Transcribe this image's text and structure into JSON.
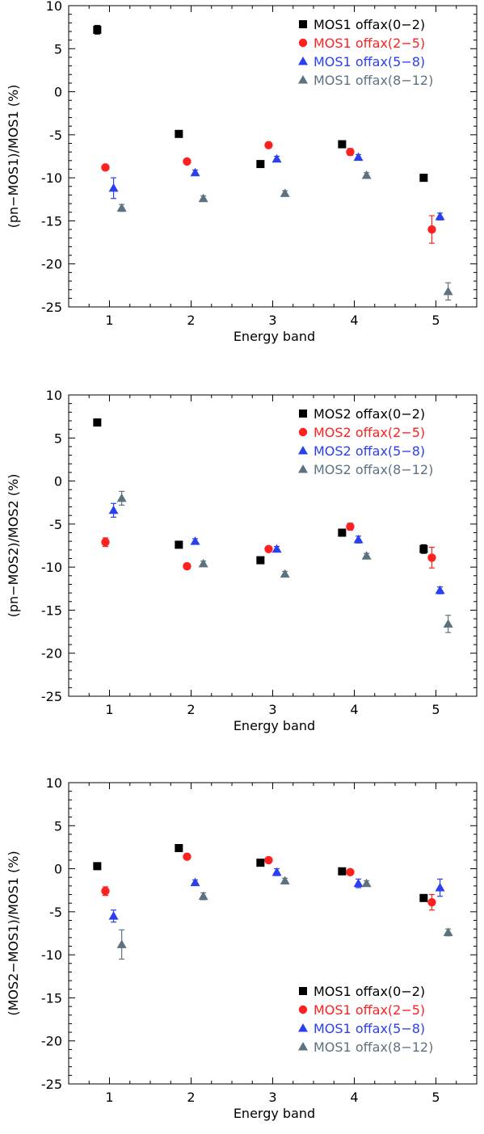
{
  "chart_data": [
    {
      "type": "scatter",
      "xlabel": "Energy band",
      "ylabel": "(pn−MOS1)/MOS1 (%)",
      "xlim": [
        0.5,
        5.5
      ],
      "ylim": [
        -25,
        10
      ],
      "xticks": [
        1,
        2,
        3,
        4,
        5
      ],
      "yticks": [
        10,
        5,
        0,
        -5,
        -10,
        -15,
        -20,
        -25
      ],
      "legend_position": "top-right",
      "series": [
        {
          "name": "MOS1 offax(0−2)",
          "color": "#000000",
          "marker": "square",
          "x": [
            0.85,
            1.85,
            2.85,
            3.85,
            4.85
          ],
          "y": [
            7.2,
            -4.9,
            -8.4,
            -6.1,
            -10.0
          ],
          "err": [
            0.5,
            0.3,
            0.3,
            0.3,
            0.4
          ]
        },
        {
          "name": "MOS1 offax(2−5)",
          "color": "#ff2020",
          "marker": "circle",
          "x": [
            0.95,
            1.95,
            2.95,
            3.95,
            4.95
          ],
          "y": [
            -8.8,
            -8.1,
            -6.2,
            -7.0,
            -16.0
          ],
          "err": [
            0.3,
            0.3,
            0.3,
            0.4,
            1.6
          ]
        },
        {
          "name": "MOS1 offax(5−8)",
          "color": "#2a3ff0",
          "marker": "triangle",
          "x": [
            1.05,
            2.05,
            3.05,
            4.05,
            5.05
          ],
          "y": [
            -11.2,
            -9.4,
            -7.8,
            -7.6,
            -14.5
          ],
          "err": [
            1.2,
            0.3,
            0.3,
            0.3,
            0.4
          ]
        },
        {
          "name": "MOS1 offax(8−12)",
          "color": "#5d7280",
          "marker": "triangle",
          "x": [
            1.15,
            2.15,
            3.15,
            4.15,
            5.15
          ],
          "y": [
            -13.5,
            -12.4,
            -11.8,
            -9.7,
            -23.2
          ],
          "err": [
            0.4,
            0.3,
            0.3,
            0.3,
            1.0
          ]
        }
      ]
    },
    {
      "type": "scatter",
      "xlabel": "Energy band",
      "ylabel": "(pn−MOS2)/MOS2 (%)",
      "xlim": [
        0.5,
        5.5
      ],
      "ylim": [
        -25,
        10
      ],
      "xticks": [
        1,
        2,
        3,
        4,
        5
      ],
      "yticks": [
        10,
        5,
        0,
        -5,
        -10,
        -15,
        -20,
        -25
      ],
      "legend_position": "top-right",
      "series": [
        {
          "name": "MOS2 offax(0−2)",
          "color": "#000000",
          "marker": "square",
          "x": [
            0.85,
            1.85,
            2.85,
            3.85,
            4.85
          ],
          "y": [
            6.8,
            -7.4,
            -9.2,
            -6.0,
            -7.9
          ],
          "err": [
            0.4,
            0.3,
            0.3,
            0.3,
            0.5
          ]
        },
        {
          "name": "MOS2 offax(2−5)",
          "color": "#ff2020",
          "marker": "circle",
          "x": [
            0.95,
            1.95,
            2.95,
            3.95,
            4.95
          ],
          "y": [
            -7.1,
            -9.9,
            -7.9,
            -5.3,
            -8.9
          ],
          "err": [
            0.5,
            0.3,
            0.3,
            0.4,
            1.2
          ]
        },
        {
          "name": "MOS2 offax(5−8)",
          "color": "#2a3ff0",
          "marker": "triangle",
          "x": [
            1.05,
            2.05,
            3.05,
            4.05,
            5.05
          ],
          "y": [
            -3.4,
            -7.0,
            -7.9,
            -6.8,
            -12.7
          ],
          "err": [
            0.8,
            0.3,
            0.3,
            0.4,
            0.4
          ]
        },
        {
          "name": "MOS2 offax(8−12)",
          "color": "#5d7280",
          "marker": "triangle",
          "x": [
            1.15,
            2.15,
            3.15,
            4.15,
            5.15
          ],
          "y": [
            -2.0,
            -9.6,
            -10.8,
            -8.7,
            -16.6
          ],
          "err": [
            0.8,
            0.3,
            0.3,
            0.3,
            1.0
          ]
        }
      ]
    },
    {
      "type": "scatter",
      "xlabel": "Energy band",
      "ylabel": "(MOS2−MOS1)/MOS1 (%)",
      "xlim": [
        0.5,
        5.5
      ],
      "ylim": [
        -25,
        10
      ],
      "xticks": [
        1,
        2,
        3,
        4,
        5
      ],
      "yticks": [
        10,
        5,
        0,
        -5,
        -10,
        -15,
        -20,
        -25
      ],
      "legend_position": "bottom-right",
      "series": [
        {
          "name": "MOS1 offax(0−2)",
          "color": "#000000",
          "marker": "square",
          "x": [
            0.85,
            1.85,
            2.85,
            3.85,
            4.85
          ],
          "y": [
            0.3,
            2.4,
            0.7,
            -0.3,
            -3.4
          ],
          "err": [
            0.3,
            0.3,
            0.3,
            0.3,
            0.3
          ]
        },
        {
          "name": "MOS1 offax(2−5)",
          "color": "#ff2020",
          "marker": "circle",
          "x": [
            0.95,
            1.95,
            2.95,
            3.95,
            4.95
          ],
          "y": [
            -2.6,
            1.4,
            1.0,
            -0.4,
            -3.9
          ],
          "err": [
            0.5,
            0.3,
            0.3,
            0.3,
            0.9
          ]
        },
        {
          "name": "MOS1 offax(5−8)",
          "color": "#2a3ff0",
          "marker": "triangle",
          "x": [
            1.05,
            2.05,
            3.05,
            4.05,
            5.05
          ],
          "y": [
            -5.5,
            -1.6,
            -0.4,
            -1.7,
            -2.2
          ],
          "err": [
            0.7,
            0.3,
            0.4,
            0.5,
            1.0
          ]
        },
        {
          "name": "MOS1 offax(8−12)",
          "color": "#5d7280",
          "marker": "triangle",
          "x": [
            1.15,
            2.15,
            3.15,
            4.15,
            5.15
          ],
          "y": [
            -8.8,
            -3.2,
            -1.4,
            -1.7,
            -7.4
          ],
          "err": [
            1.7,
            0.4,
            0.3,
            0.3,
            0.4
          ]
        }
      ]
    }
  ]
}
